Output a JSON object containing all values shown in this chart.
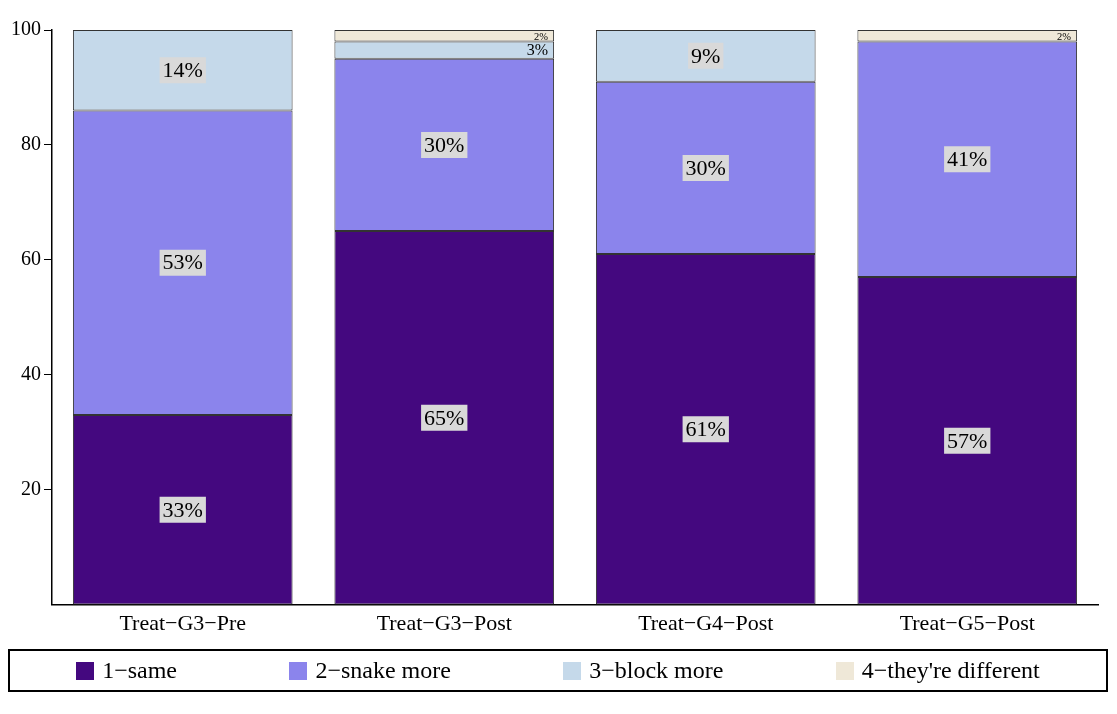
{
  "chart_data": {
    "type": "bar",
    "stacked": true,
    "categories": [
      "Treat−G3−Pre",
      "Treat−G3−Post",
      "Treat−G4−Post",
      "Treat−G5−Post"
    ],
    "series": [
      {
        "name": "1−same",
        "color": "#44087f",
        "values": [
          33,
          65,
          61,
          57
        ],
        "value_labels": [
          "33%",
          "65%",
          "61%",
          "57%"
        ]
      },
      {
        "name": "2−snake more",
        "color": "#8b84ec",
        "values": [
          53,
          30,
          30,
          41
        ],
        "value_labels": [
          "53%",
          "30%",
          "30%",
          "41%"
        ]
      },
      {
        "name": "3−block more",
        "color": "#c5d9ea",
        "values": [
          14,
          3,
          9,
          0
        ],
        "value_labels": [
          "14%",
          "3%",
          "9%",
          null
        ]
      },
      {
        "name": "4−they're different",
        "color": "#efe8d8",
        "values": [
          0,
          2,
          0,
          2
        ],
        "value_labels": [
          null,
          "2%",
          null,
          "2%"
        ]
      }
    ],
    "ylim": [
      0,
      100
    ],
    "yticks": [
      20,
      40,
      60,
      80,
      100
    ],
    "grid": false,
    "legend": "bottom"
  }
}
